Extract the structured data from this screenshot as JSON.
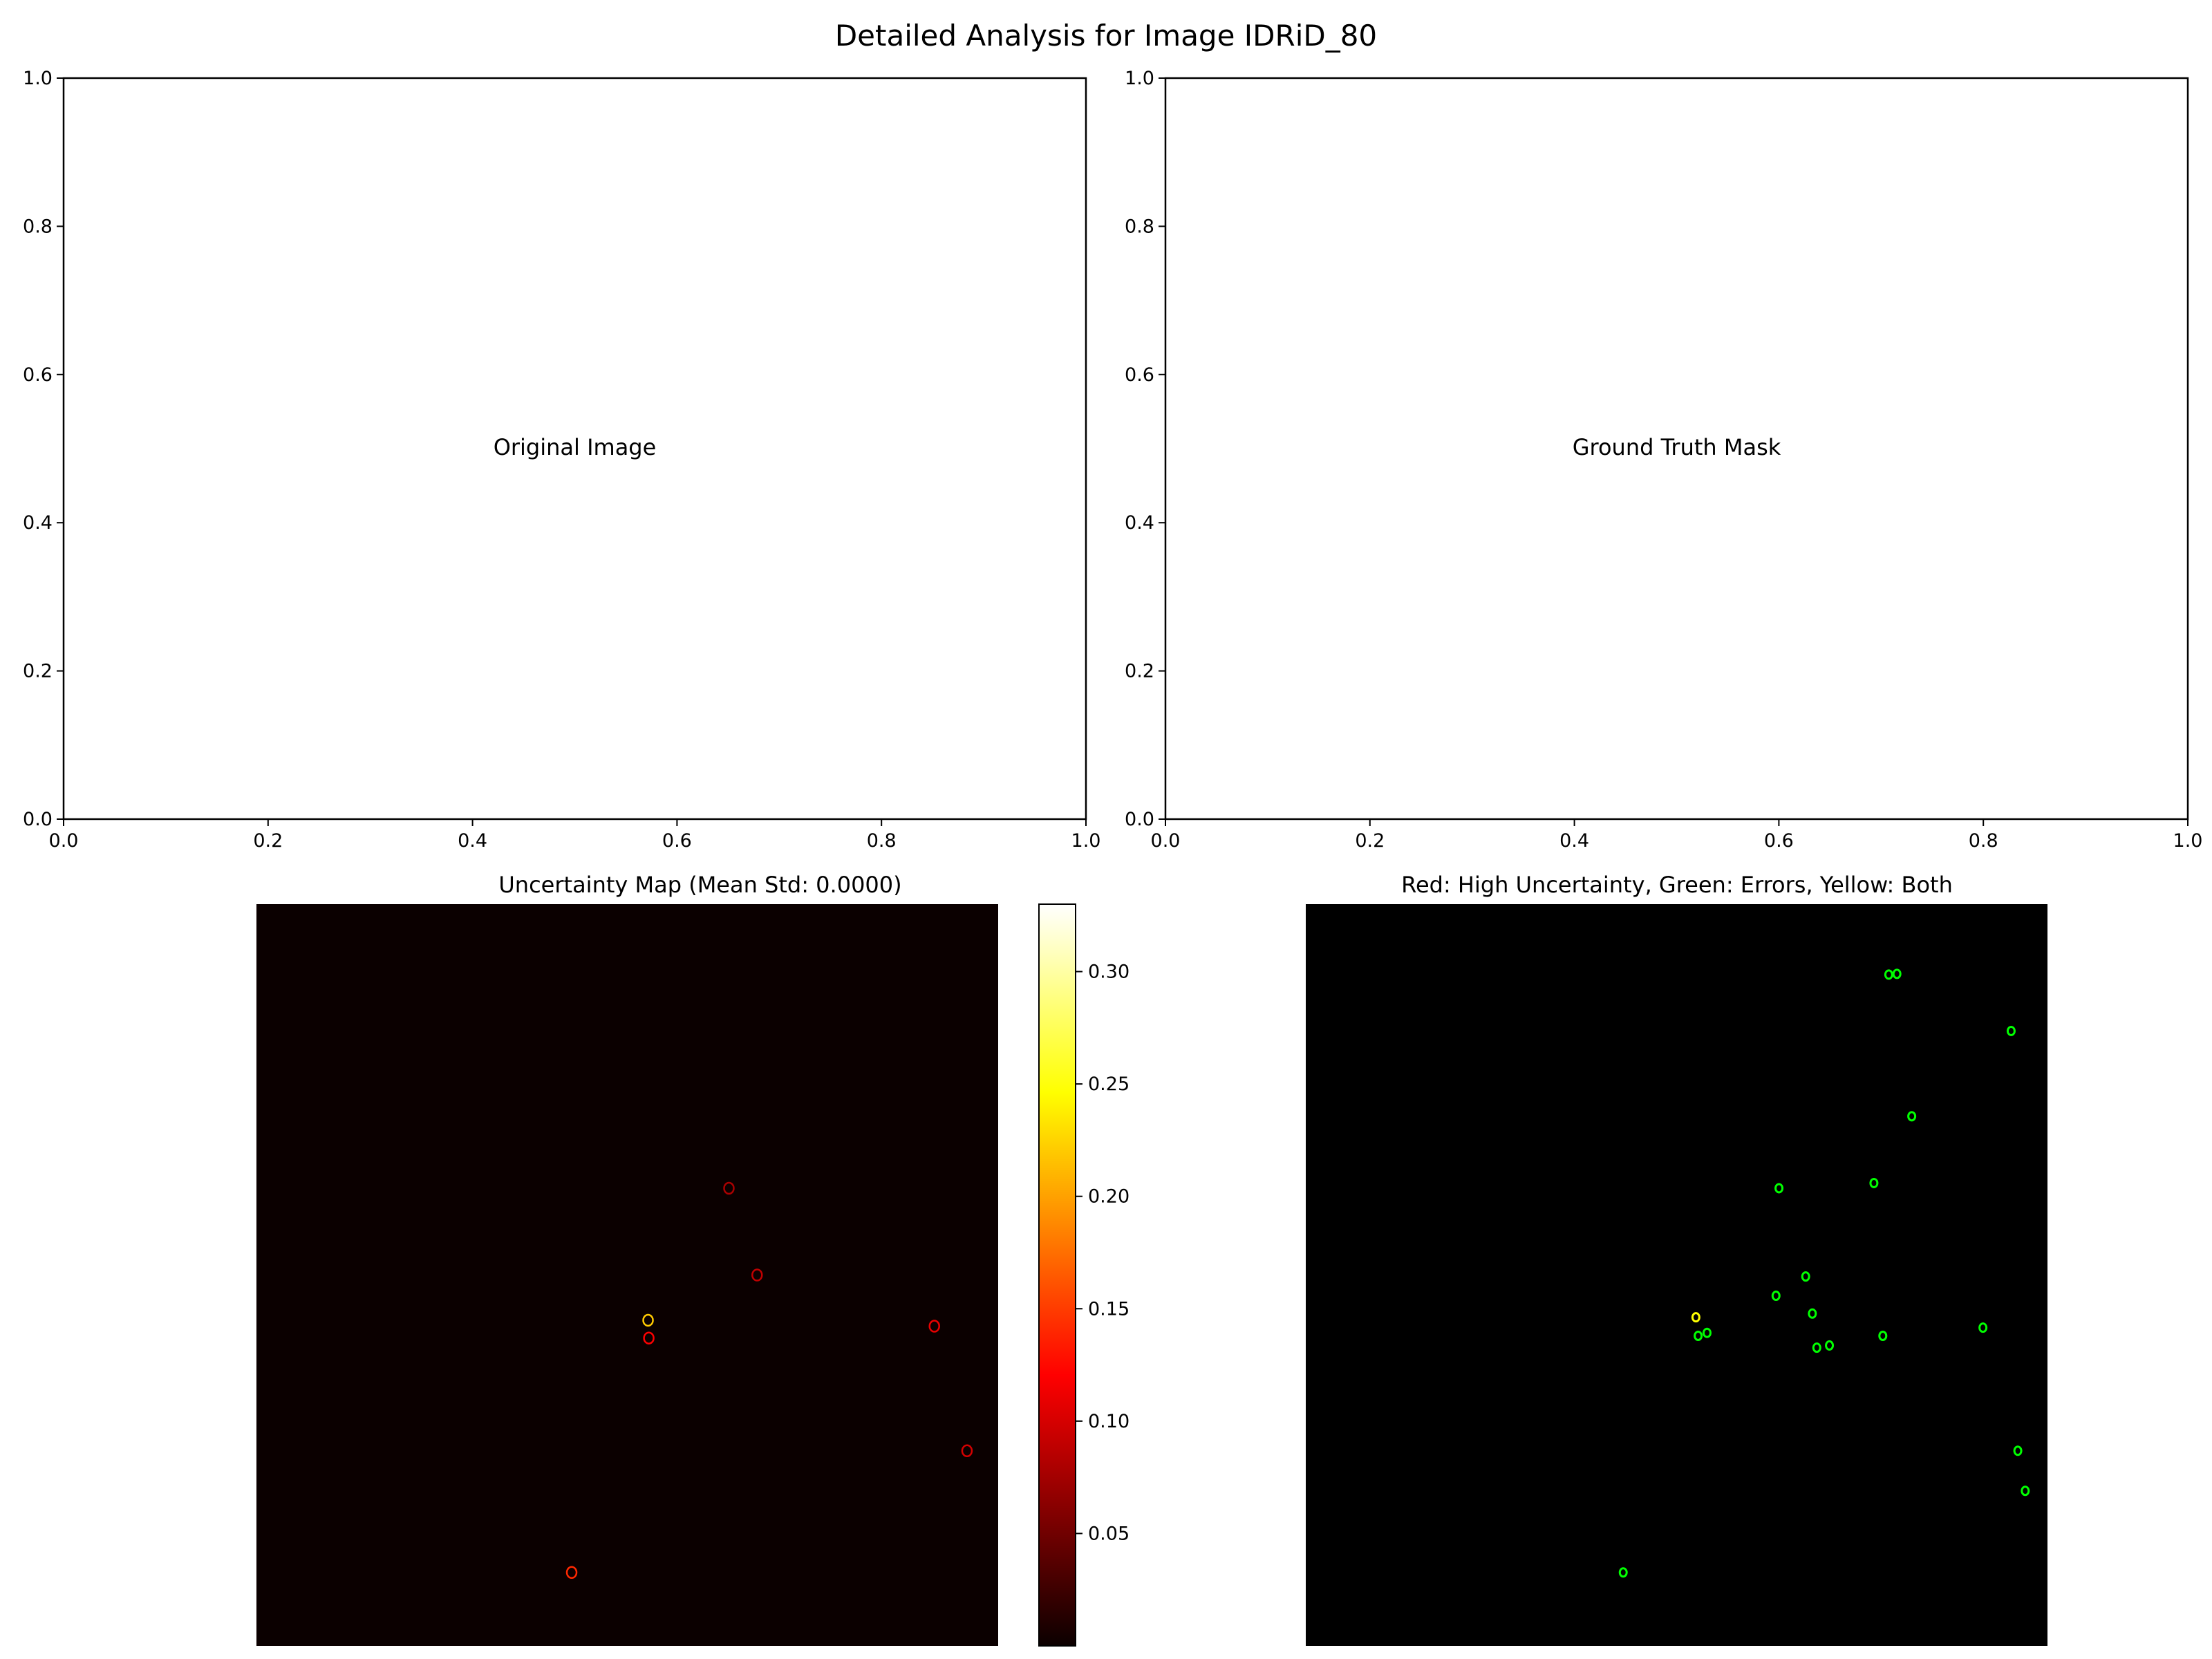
{
  "suptitle": "Detailed Analysis for Image IDRiD_80",
  "colors": {
    "axis": "#000000",
    "map_background": "#0b0000",
    "overlay_background": "#000000",
    "error_green": "#00ff00",
    "uncertainty_red": "#ff2000",
    "both_yellow": "#ffff00"
  },
  "chart_data": [
    {
      "type": "scatter",
      "panel": "top-left",
      "title": "",
      "center_text": "Original Image",
      "xlim": [
        0,
        1
      ],
      "ylim": [
        0,
        1
      ],
      "xticks": [
        "0.0",
        "0.2",
        "0.4",
        "0.6",
        "0.8",
        "1.0"
      ],
      "yticks": [
        "0.0",
        "0.2",
        "0.4",
        "0.6",
        "0.8",
        "1.0"
      ],
      "points": []
    },
    {
      "type": "scatter",
      "panel": "top-right",
      "title": "",
      "center_text": "Ground Truth Mask",
      "xlim": [
        0,
        1
      ],
      "ylim": [
        0,
        1
      ],
      "xticks": [
        "0.0",
        "0.2",
        "0.4",
        "0.6",
        "0.8",
        "1.0"
      ],
      "yticks": [
        "0.0",
        "0.2",
        "0.4",
        "0.6",
        "0.8",
        "1.0"
      ],
      "points": []
    },
    {
      "type": "heatmap",
      "panel": "bottom-left",
      "title": "Uncertainty Map (Mean Std: 0.0000)",
      "colormap": "hot",
      "axes_visible": false,
      "colorbar": {
        "range": [
          0,
          0.33
        ],
        "ticks": [
          0.05,
          0.1,
          0.15,
          0.2,
          0.25,
          0.3
        ],
        "tick_labels": [
          "0.05",
          "0.10",
          "0.15",
          "0.20",
          "0.25",
          "0.30"
        ]
      },
      "blobs": [
        {
          "x": 0.528,
          "y": 0.561,
          "value": 0.22
        },
        {
          "x": 0.529,
          "y": 0.585,
          "value": 0.12
        },
        {
          "x": 0.637,
          "y": 0.383,
          "value": 0.08
        },
        {
          "x": 0.675,
          "y": 0.5,
          "value": 0.09
        },
        {
          "x": 0.914,
          "y": 0.569,
          "value": 0.11
        },
        {
          "x": 0.958,
          "y": 0.737,
          "value": 0.1
        },
        {
          "x": 0.425,
          "y": 0.901,
          "value": 0.14
        }
      ]
    },
    {
      "type": "heatmap",
      "panel": "bottom-right",
      "title": "Red: High Uncertainty, Green: Errors, Yellow: Both",
      "legend_classes": [
        "High Uncertainty",
        "Errors",
        "Both"
      ],
      "axes_visible": false,
      "blobs": [
        {
          "x": 0.786,
          "y": 0.095,
          "class": "Errors"
        },
        {
          "x": 0.797,
          "y": 0.094,
          "class": "Errors"
        },
        {
          "x": 0.951,
          "y": 0.171,
          "class": "Errors"
        },
        {
          "x": 0.817,
          "y": 0.286,
          "class": "Errors"
        },
        {
          "x": 0.766,
          "y": 0.376,
          "class": "Errors"
        },
        {
          "x": 0.638,
          "y": 0.383,
          "class": "Errors"
        },
        {
          "x": 0.526,
          "y": 0.557,
          "class": "Both"
        },
        {
          "x": 0.529,
          "y": 0.582,
          "class": "Errors"
        },
        {
          "x": 0.541,
          "y": 0.578,
          "class": "Errors"
        },
        {
          "x": 0.674,
          "y": 0.502,
          "class": "Errors"
        },
        {
          "x": 0.634,
          "y": 0.528,
          "class": "Errors"
        },
        {
          "x": 0.683,
          "y": 0.552,
          "class": "Errors"
        },
        {
          "x": 0.778,
          "y": 0.582,
          "class": "Errors"
        },
        {
          "x": 0.913,
          "y": 0.571,
          "class": "Errors"
        },
        {
          "x": 0.689,
          "y": 0.598,
          "class": "Errors"
        },
        {
          "x": 0.706,
          "y": 0.595,
          "class": "Errors"
        },
        {
          "x": 0.96,
          "y": 0.737,
          "class": "Errors"
        },
        {
          "x": 0.97,
          "y": 0.791,
          "class": "Errors"
        },
        {
          "x": 0.428,
          "y": 0.901,
          "class": "Errors"
        }
      ]
    }
  ]
}
